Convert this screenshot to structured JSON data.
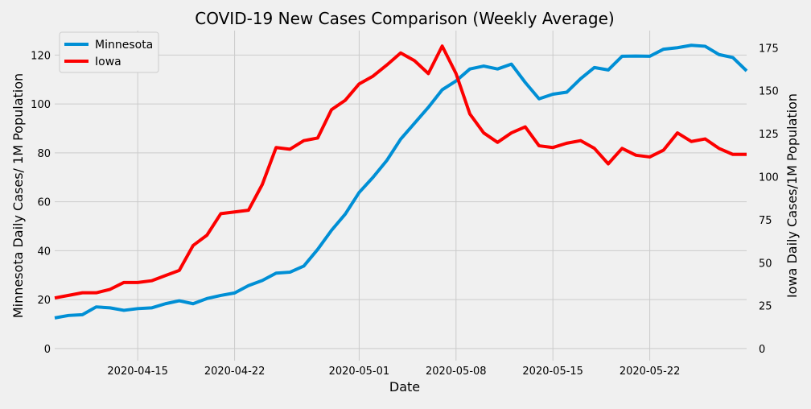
{
  "chart_data": {
    "type": "line",
    "title": "COVID-19 New Cases Comparison (Weekly Average)",
    "xlabel": "Date",
    "ylabel_left": "Minnesota Daily Cases/ 1M Population",
    "ylabel_right": "Iowa Daily Cases/1M Population",
    "x_start": "2020-04-09",
    "x": [
      "2020-04-09",
      "2020-04-10",
      "2020-04-11",
      "2020-04-12",
      "2020-04-13",
      "2020-04-14",
      "2020-04-15",
      "2020-04-16",
      "2020-04-17",
      "2020-04-18",
      "2020-04-19",
      "2020-04-20",
      "2020-04-21",
      "2020-04-22",
      "2020-04-23",
      "2020-04-24",
      "2020-04-25",
      "2020-04-26",
      "2020-04-27",
      "2020-04-28",
      "2020-04-29",
      "2020-04-30",
      "2020-05-01",
      "2020-05-02",
      "2020-05-03",
      "2020-05-04",
      "2020-05-05",
      "2020-05-06",
      "2020-05-07",
      "2020-05-08",
      "2020-05-09",
      "2020-05-10",
      "2020-05-11",
      "2020-05-12",
      "2020-05-13",
      "2020-05-14",
      "2020-05-15",
      "2020-05-16",
      "2020-05-17",
      "2020-05-18",
      "2020-05-19",
      "2020-05-20",
      "2020-05-21",
      "2020-05-22",
      "2020-05-23",
      "2020-05-24",
      "2020-05-25",
      "2020-05-26",
      "2020-05-27",
      "2020-05-28",
      "2020-05-29"
    ],
    "x_ticks": [
      "2020-04-15",
      "2020-04-22",
      "2020-05-01",
      "2020-05-08",
      "2020-05-15",
      "2020-05-22"
    ],
    "x_tick_labels": [
      "2020-04-15",
      "2020-04-22",
      "2020-05-01",
      "2020-05-08",
      "2020-05-15",
      "2020-05-22"
    ],
    "ylim_left": [
      -5,
      130
    ],
    "yticks_left": [
      0,
      20,
      40,
      60,
      80,
      100,
      120
    ],
    "ylim_right": [
      -7,
      185
    ],
    "yticks_right": [
      0,
      25,
      50,
      75,
      100,
      125,
      150,
      175
    ],
    "grid": true,
    "legend_position": "top-left",
    "series": [
      {
        "name": "Minnesota",
        "axis": "left",
        "color": "#008fd5",
        "values": [
          12.5,
          13.5,
          13.8,
          17.0,
          16.6,
          15.6,
          16.3,
          16.6,
          18.3,
          19.5,
          18.3,
          20.4,
          21.7,
          22.7,
          25.7,
          27.8,
          30.8,
          31.2,
          33.7,
          40.5,
          48.3,
          55.0,
          63.8,
          70.0,
          76.9,
          85.6,
          92.1,
          98.6,
          105.8,
          109.4,
          114.3,
          115.5,
          114.3,
          116.3,
          108.8,
          102.1,
          104.0,
          104.8,
          110.3,
          114.9,
          113.9,
          119.5,
          119.6,
          119.5,
          122.4,
          123.0,
          124.0,
          123.6,
          120.2,
          119.0,
          113.5
        ]
      },
      {
        "name": "Iowa",
        "axis": "right",
        "color": "#fc0000",
        "values": [
          29.5,
          31.0,
          32.5,
          32.5,
          34.5,
          38.5,
          38.5,
          39.5,
          42.5,
          45.5,
          60.0,
          66.0,
          78.5,
          79.5,
          80.5,
          95.5,
          117.0,
          116.0,
          121.0,
          122.5,
          139.0,
          144.5,
          154.0,
          158.5,
          165.0,
          172.0,
          167.5,
          160.0,
          176.0,
          160.0,
          136.5,
          125.5,
          120.0,
          125.5,
          129.0,
          118.0,
          117.0,
          119.5,
          121.0,
          116.5,
          107.5,
          116.5,
          112.5,
          111.5,
          115.5,
          125.5,
          120.5,
          122.0,
          116.5,
          113.0,
          113.0
        ]
      }
    ]
  }
}
